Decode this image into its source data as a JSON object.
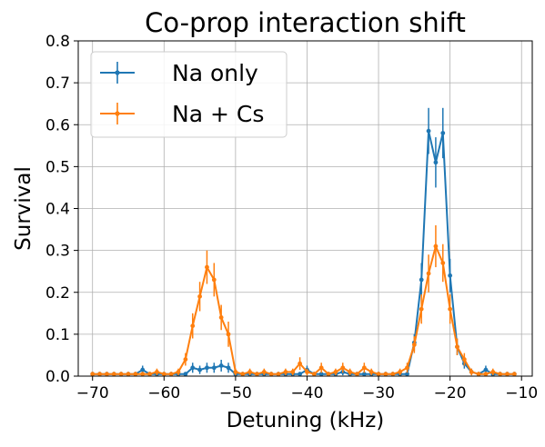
{
  "chart_data": {
    "type": "line",
    "title": "Co-prop interaction shift",
    "xlabel": "Detuning (kHz)",
    "ylabel": "Survival",
    "xlim": [
      -72,
      -8.5
    ],
    "ylim": [
      0,
      0.8
    ],
    "xticks": [
      -70,
      -60,
      -50,
      -40,
      -30,
      -20,
      -10
    ],
    "yticks": [
      0.0,
      0.1,
      0.2,
      0.3,
      0.4,
      0.5,
      0.6,
      0.7,
      0.8
    ],
    "x_tick_labels": [
      "−70",
      "−60",
      "−50",
      "−40",
      "−30",
      "−20",
      "−10"
    ],
    "y_tick_labels": [
      "0.0",
      "0.1",
      "0.2",
      "0.3",
      "0.4",
      "0.5",
      "0.6",
      "0.7",
      "0.8"
    ],
    "grid": true,
    "legend_position": "top-left",
    "error_bars": true,
    "series": [
      {
        "name": "Na only",
        "color": "#1f77b4",
        "x": [
          -70,
          -69,
          -68,
          -67,
          -66,
          -65,
          -64,
          -63,
          -62,
          -61,
          -60,
          -59,
          -58,
          -57,
          -56,
          -55,
          -54,
          -53,
          -52,
          -51,
          -50,
          -49,
          -48,
          -47,
          -46,
          -45,
          -44,
          -43,
          -42,
          -41,
          -40,
          -39,
          -38,
          -37,
          -36,
          -35,
          -34,
          -33,
          -32,
          -31,
          -30,
          -29,
          -28,
          -27,
          -26,
          -25,
          -24,
          -23,
          -22,
          -21,
          -20,
          -19,
          -18,
          -17,
          -16,
          -15,
          -14,
          -13,
          -12,
          -11
        ],
        "y": [
          0.005,
          0.005,
          0.005,
          0.005,
          0.005,
          0.005,
          0.005,
          0.015,
          0.005,
          0.005,
          0.005,
          0.005,
          0.005,
          0.005,
          0.02,
          0.015,
          0.02,
          0.02,
          0.025,
          0.02,
          0.005,
          0.005,
          0.005,
          0.005,
          0.005,
          0.005,
          0.005,
          0.005,
          0.005,
          0.005,
          0.015,
          0.005,
          0.005,
          0.005,
          0.005,
          0.01,
          0.005,
          0.005,
          0.005,
          0.005,
          0.005,
          0.005,
          0.005,
          0.005,
          0.005,
          0.08,
          0.23,
          0.585,
          0.51,
          0.58,
          0.24,
          0.07,
          0.03,
          0.01,
          0.005,
          0.015,
          0.005,
          0.005,
          0.005,
          0.005
        ],
        "err": [
          0.005,
          0.005,
          0.005,
          0.005,
          0.005,
          0.005,
          0.005,
          0.01,
          0.005,
          0.005,
          0.005,
          0.005,
          0.005,
          0.005,
          0.012,
          0.01,
          0.012,
          0.012,
          0.014,
          0.012,
          0.005,
          0.005,
          0.005,
          0.005,
          0.005,
          0.005,
          0.005,
          0.005,
          0.005,
          0.005,
          0.01,
          0.005,
          0.005,
          0.005,
          0.005,
          0.008,
          0.005,
          0.005,
          0.005,
          0.005,
          0.005,
          0.005,
          0.005,
          0.005,
          0.005,
          0.02,
          0.04,
          0.055,
          0.06,
          0.06,
          0.04,
          0.02,
          0.012,
          0.008,
          0.005,
          0.01,
          0.005,
          0.005,
          0.005,
          0.005
        ]
      },
      {
        "name": "Na + Cs",
        "color": "#ff7f0e",
        "x": [
          -70,
          -69,
          -68,
          -67,
          -66,
          -65,
          -64,
          -63,
          -62,
          -61,
          -60,
          -59,
          -58,
          -57,
          -56,
          -55,
          -54,
          -53,
          -52,
          -51,
          -50,
          -49,
          -48,
          -47,
          -46,
          -45,
          -44,
          -43,
          -42,
          -41,
          -40,
          -39,
          -38,
          -37,
          -36,
          -35,
          -34,
          -33,
          -32,
          -31,
          -30,
          -29,
          -28,
          -27,
          -26,
          -25,
          -24,
          -23,
          -22,
          -21,
          -20,
          -19,
          -18,
          -17,
          -16,
          -15,
          -14,
          -13,
          -12,
          -11
        ],
        "y": [
          0.005,
          0.005,
          0.005,
          0.005,
          0.005,
          0.005,
          0.005,
          0.005,
          0.005,
          0.01,
          0.005,
          0.005,
          0.01,
          0.04,
          0.12,
          0.19,
          0.26,
          0.23,
          0.14,
          0.1,
          0.01,
          0.005,
          0.01,
          0.005,
          0.01,
          0.005,
          0.005,
          0.01,
          0.01,
          0.03,
          0.01,
          0.005,
          0.02,
          0.005,
          0.01,
          0.02,
          0.01,
          0.005,
          0.02,
          0.01,
          0.005,
          0.005,
          0.005,
          0.01,
          0.02,
          0.075,
          0.16,
          0.245,
          0.31,
          0.27,
          0.16,
          0.07,
          0.04,
          0.01,
          0.005,
          0.005,
          0.01,
          0.005,
          0.005,
          0.005
        ],
        "err": [
          0.005,
          0.005,
          0.005,
          0.005,
          0.005,
          0.005,
          0.005,
          0.005,
          0.005,
          0.008,
          0.005,
          0.005,
          0.008,
          0.015,
          0.03,
          0.035,
          0.04,
          0.04,
          0.03,
          0.03,
          0.008,
          0.005,
          0.008,
          0.005,
          0.008,
          0.005,
          0.005,
          0.008,
          0.008,
          0.015,
          0.008,
          0.005,
          0.012,
          0.005,
          0.008,
          0.012,
          0.008,
          0.005,
          0.012,
          0.008,
          0.005,
          0.005,
          0.005,
          0.008,
          0.012,
          0.02,
          0.035,
          0.045,
          0.05,
          0.045,
          0.035,
          0.02,
          0.015,
          0.008,
          0.005,
          0.005,
          0.008,
          0.005,
          0.005,
          0.005
        ]
      }
    ]
  }
}
